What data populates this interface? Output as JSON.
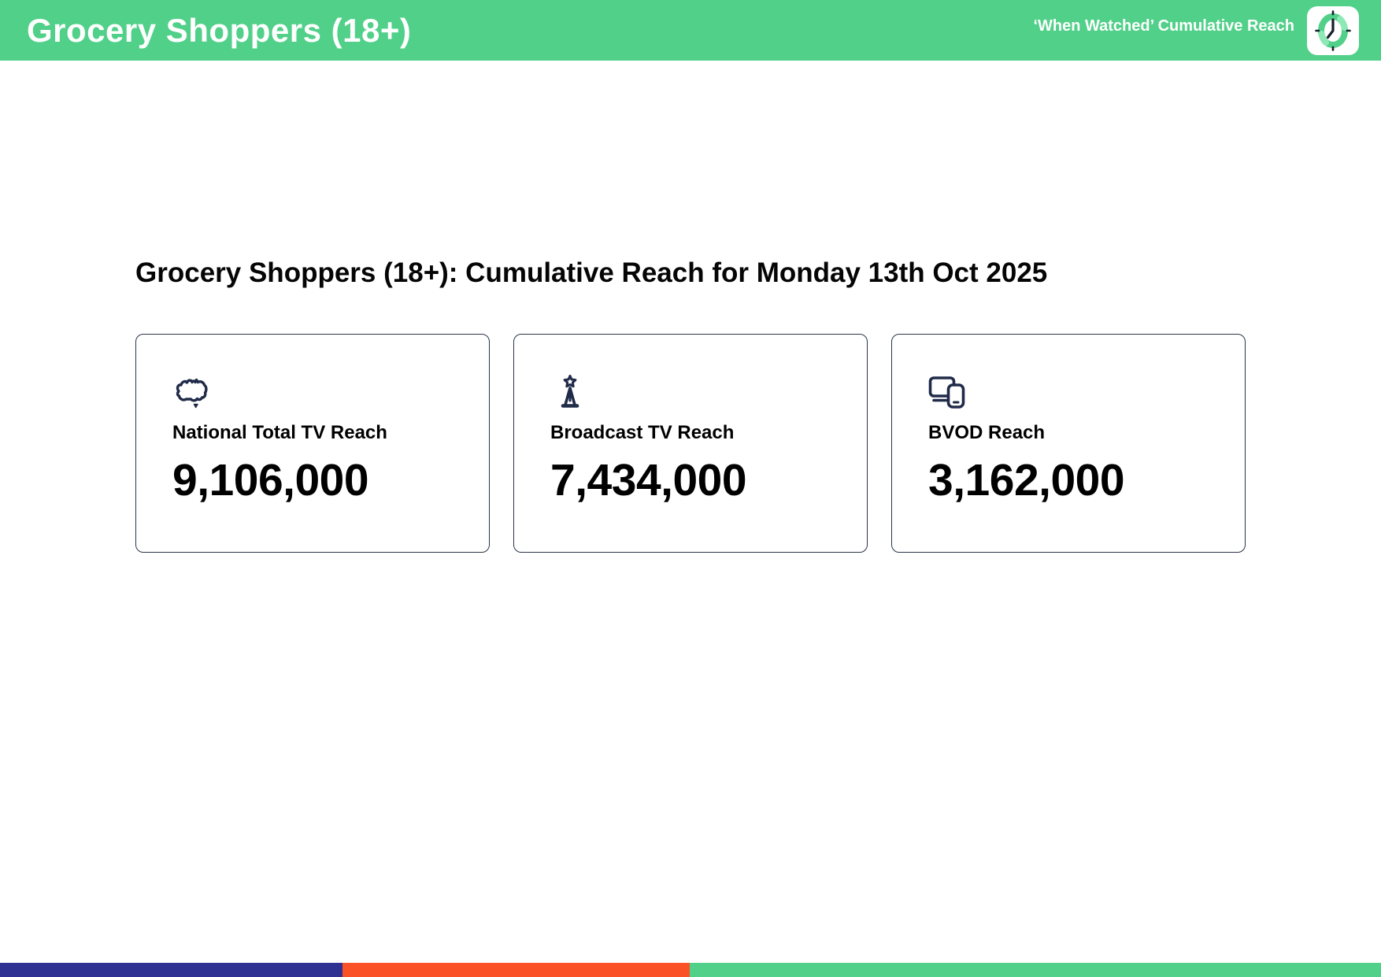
{
  "header": {
    "title": "Grocery Shoppers (18+)",
    "subtitle": "‘When Watched’ Cumulative Reach",
    "logo": "clock-icon",
    "bg_color": "#51d089"
  },
  "main": {
    "heading": "Grocery Shoppers (18+): Cumulative Reach for Monday 13th Oct 2025",
    "cards": [
      {
        "icon": "australia-map-icon",
        "label": "National Total TV Reach",
        "value": "9,106,000"
      },
      {
        "icon": "broadcast-tower-icon",
        "label": "Broadcast TV Reach",
        "value": "7,434,000"
      },
      {
        "icon": "devices-icon",
        "label": "BVOD Reach",
        "value": "3,162,000"
      }
    ]
  },
  "footer": {
    "segments": [
      {
        "name": "blue-segment",
        "color": "#2e3192",
        "width_pct": 24.8
      },
      {
        "name": "orange-segment",
        "color": "#fb5126",
        "width_pct": 25.15
      },
      {
        "name": "green-segment",
        "color": "#51d089",
        "width_pct": 50.05
      }
    ]
  },
  "colors": {
    "accent_green": "#51d089",
    "icon_navy": "#202b49",
    "card_border": "#2a3447",
    "footer_blue": "#2e3192",
    "footer_orange": "#fb5126"
  }
}
